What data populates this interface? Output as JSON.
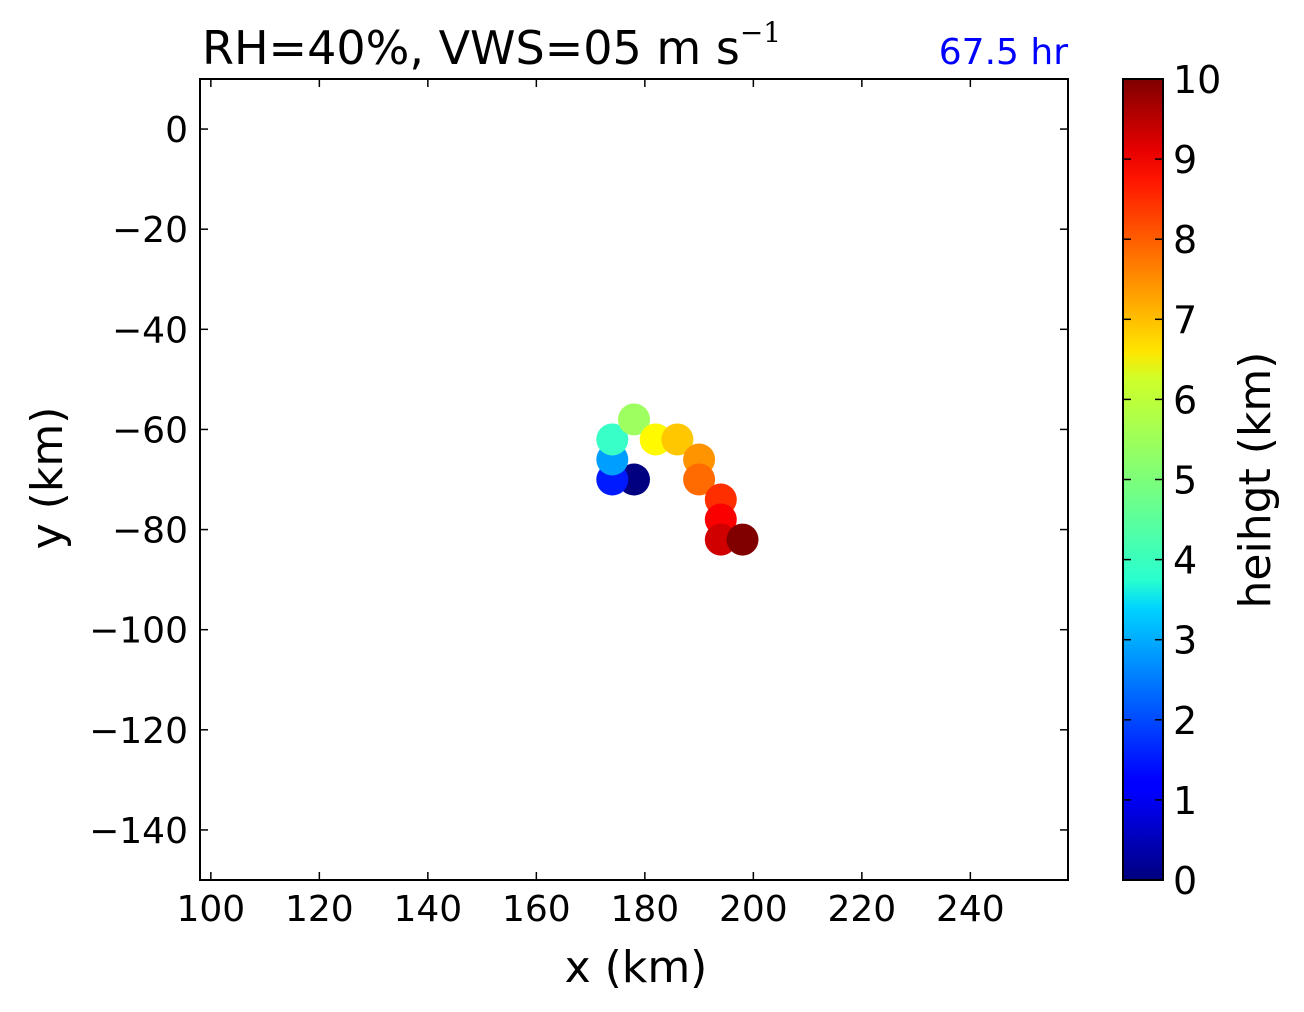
{
  "chart_data": {
    "type": "scatter",
    "title": "RH=40%, VWS=05 m s",
    "title_superscript": "−1",
    "time_label": "67.5 hr",
    "time_label_color": "#0000ff",
    "xlabel": "x (km)",
    "ylabel": "y (km)",
    "xlim": [
      98,
      258
    ],
    "ylim": [
      -150,
      10
    ],
    "xticks": [
      100,
      120,
      140,
      160,
      180,
      200,
      220,
      240
    ],
    "xtick_labels": [
      "100",
      "120",
      "140",
      "160",
      "180",
      "200",
      "220",
      "240"
    ],
    "yticks": [
      0,
      -20,
      -40,
      -60,
      -80,
      -100,
      -120,
      -140
    ],
    "ytick_labels": [
      "0",
      "−20",
      "−40",
      "−60",
      "−80",
      "−100",
      "−120",
      "−140"
    ],
    "grid": false,
    "colorbar": {
      "label": "heihgt (km)",
      "colormap": "jet",
      "range": [
        0,
        10
      ],
      "ticks": [
        0,
        1,
        2,
        3,
        4,
        5,
        6,
        7,
        8,
        9,
        10
      ],
      "tick_labels": [
        "0",
        "1",
        "2",
        "3",
        "4",
        "5",
        "6",
        "7",
        "8",
        "9",
        "10"
      ]
    },
    "points": [
      {
        "x": 178,
        "y": -70,
        "height": 0.0
      },
      {
        "x": 174,
        "y": -70,
        "height": 1.5
      },
      {
        "x": 174,
        "y": -66,
        "height": 2.8
      },
      {
        "x": 174,
        "y": -62,
        "height": 4.3
      },
      {
        "x": 178,
        "y": -58,
        "height": 5.3
      },
      {
        "x": 182,
        "y": -62,
        "height": 6.3
      },
      {
        "x": 186,
        "y": -62,
        "height": 6.8
      },
      {
        "x": 190,
        "y": -66,
        "height": 7.3
      },
      {
        "x": 190,
        "y": -70,
        "height": 7.7
      },
      {
        "x": 194,
        "y": -74,
        "height": 8.3
      },
      {
        "x": 194,
        "y": -78,
        "height": 8.8
      },
      {
        "x": 194,
        "y": -82,
        "height": 9.2
      },
      {
        "x": 198,
        "y": -82,
        "height": 10.0
      }
    ]
  }
}
